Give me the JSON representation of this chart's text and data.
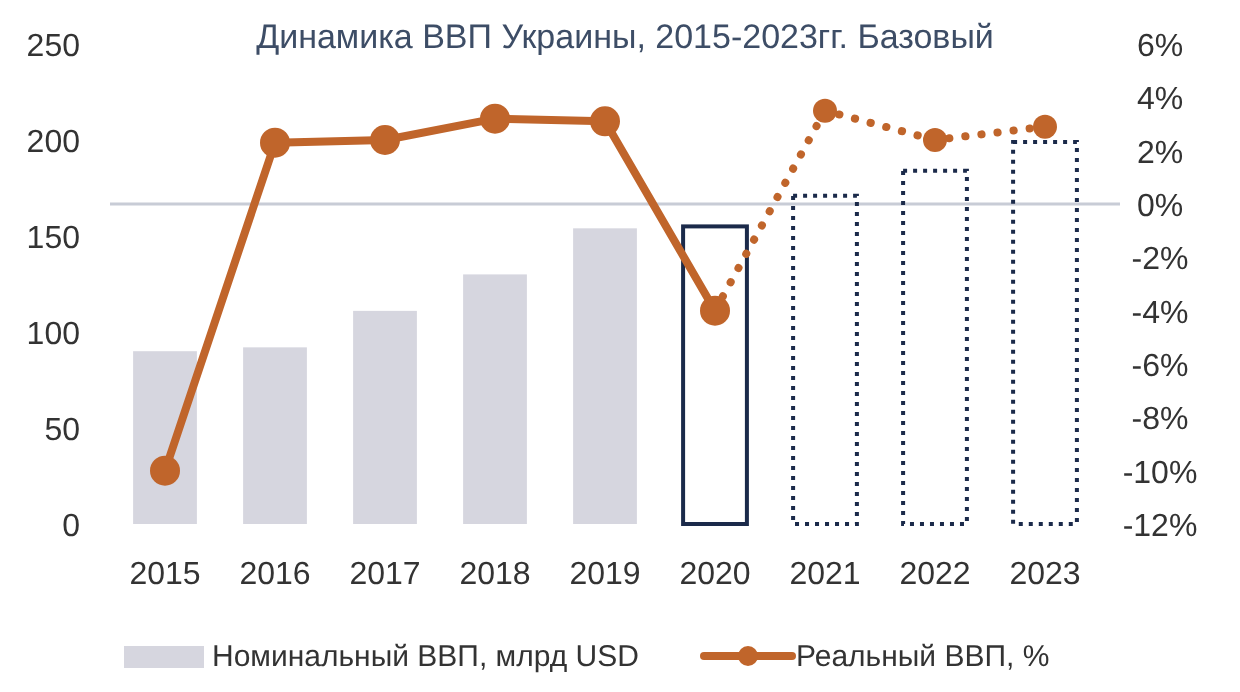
{
  "chart_data": {
    "type": "bar",
    "title": "Динамика ВВП Украины, 2015-2023гг. Базовый",
    "categories": [
      "2015",
      "2016",
      "2017",
      "2018",
      "2019",
      "2020",
      "2021",
      "2022",
      "2023"
    ],
    "series": [
      {
        "name": "Номинальный ВВП, млрд USD",
        "color": "#d6d6df",
        "values": [
          90,
          92,
          111,
          130,
          154,
          null,
          null,
          null,
          null
        ]
      },
      {
        "color": "#1b2a4a",
        "line_style": "solid",
        "values": [
          null,
          null,
          null,
          null,
          null,
          155,
          null,
          null,
          null
        ]
      },
      {
        "color": "#1b2a4a",
        "line_style": "dotted",
        "values": [
          null,
          null,
          null,
          null,
          null,
          null,
          171,
          184,
          199
        ]
      },
      {
        "name": "Реальный ВВП, %",
        "type": "line",
        "axis": "y2",
        "color": "#c0652b",
        "line_style": "solid",
        "marker": "circle",
        "values": [
          -10.0,
          2.3,
          2.4,
          3.2,
          3.1,
          -4.0,
          null,
          null,
          null
        ]
      },
      {
        "type": "line",
        "axis": "y2",
        "color": "#c0652b",
        "line_style": "dotted",
        "marker": "circle",
        "values": [
          null,
          null,
          null,
          null,
          null,
          -4.0,
          3.5,
          2.4,
          2.9
        ]
      }
    ],
    "ylim": [
      0,
      250
    ],
    "yticks": [
      0,
      50,
      100,
      150,
      200,
      250
    ],
    "y2lim": [
      -12,
      6
    ],
    "y2ticks": [
      {
        "value": -12,
        "label": "-12%"
      },
      {
        "value": -10,
        "label": "-10%"
      },
      {
        "value": -8,
        "label": "-8%"
      },
      {
        "value": -6,
        "label": "-6%"
      },
      {
        "value": -4,
        "label": "-4%"
      },
      {
        "value": -2,
        "label": "-2%"
      },
      {
        "value": 0,
        "label": "0%"
      },
      {
        "value": 2,
        "label": "2%"
      },
      {
        "value": 4,
        "label": "4%"
      },
      {
        "value": 6,
        "label": "6%"
      }
    ],
    "ref_lines": [
      {
        "axis": "y2",
        "value": 0,
        "color": "#c8ccd6"
      }
    ],
    "grid": false,
    "legend": "bottom"
  }
}
